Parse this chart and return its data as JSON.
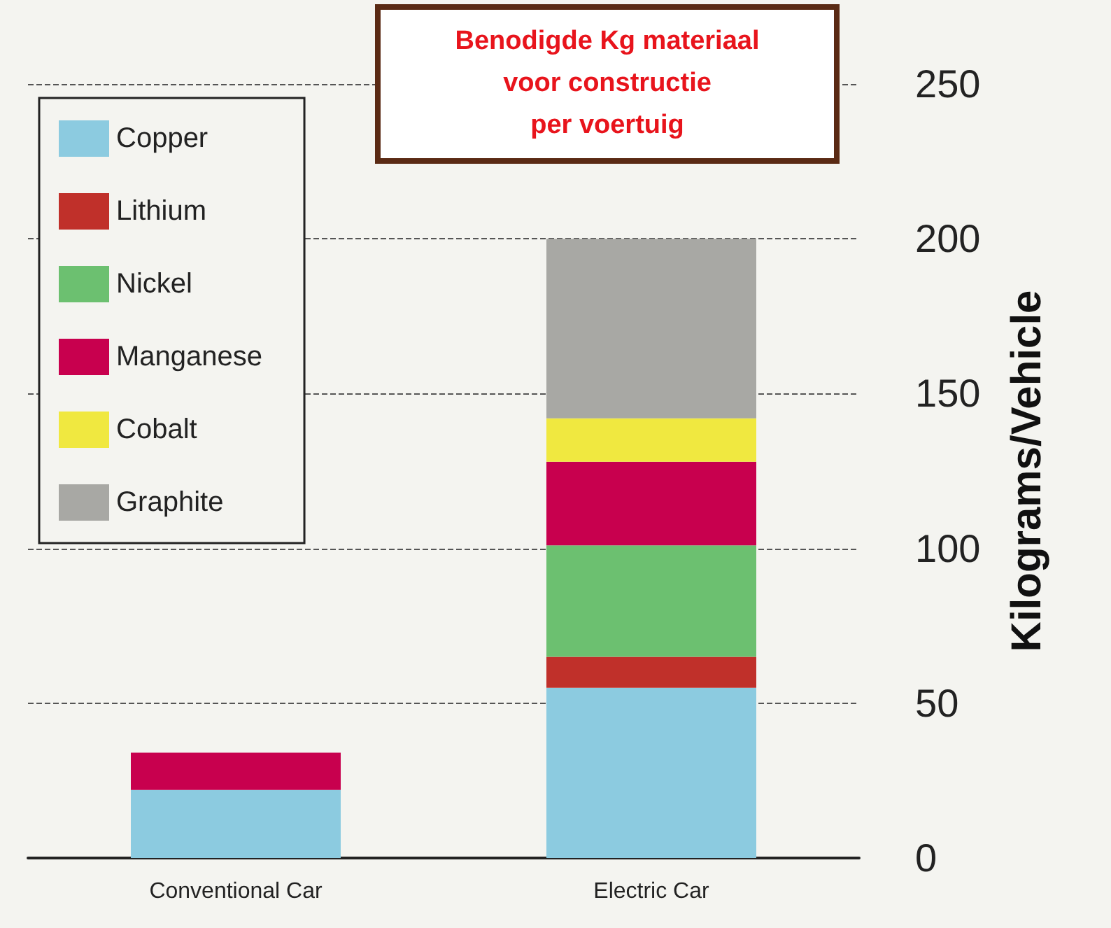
{
  "chart_data": {
    "type": "bar",
    "title": "Benodigde Kg materiaal\nvoor constructie\nper voertuig",
    "ylabel": "Kilograms/Vehicle",
    "categories": [
      "Conventional Car",
      "Electric Car"
    ],
    "stacked": true,
    "series": [
      {
        "name": "Copper",
        "color": "#8ccbe0",
        "values": [
          22,
          55
        ]
      },
      {
        "name": "Lithium",
        "color": "#c0302a",
        "values": [
          0,
          10
        ]
      },
      {
        "name": "Nickel",
        "color": "#6cc070",
        "values": [
          0,
          36
        ]
      },
      {
        "name": "Manganese",
        "color": "#c8004e",
        "values": [
          12,
          27
        ]
      },
      {
        "name": "Cobalt",
        "color": "#f0e840",
        "values": [
          0,
          14
        ]
      },
      {
        "name": "Graphite",
        "color": "#a8a8a4",
        "values": [
          0,
          58
        ]
      }
    ],
    "ylim": [
      0,
      250
    ],
    "yticks": [
      0,
      50,
      100,
      150,
      200,
      250
    ],
    "grid": "y",
    "legend": "top left"
  }
}
